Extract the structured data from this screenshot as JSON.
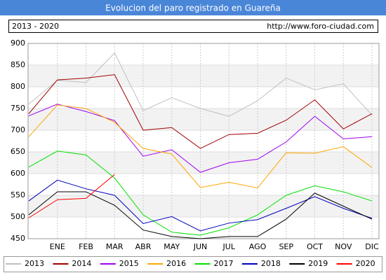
{
  "chart_data": {
    "type": "line",
    "title": "Evolucion del paro registrado en Guareña",
    "period": "2013 - 2020",
    "source": "http://www.foro-ciudad.com",
    "categories": [
      null,
      "ENE",
      "FEB",
      "MAR",
      "ABR",
      "MAY",
      "JUN",
      "JUL",
      "AGO",
      "SEP",
      "OCT",
      "NOV",
      "DIC"
    ],
    "ylim": [
      450,
      900
    ],
    "yticks": [
      450,
      500,
      550,
      600,
      650,
      700,
      750,
      800,
      850,
      900
    ],
    "grid": true,
    "legend": "bottom",
    "series": [
      {
        "name": "2013",
        "color": "#c0c0c0",
        "values": [
          760,
          815,
          810,
          878,
          745,
          775,
          750,
          732,
          768,
          820,
          793,
          807,
          735
        ]
      },
      {
        "name": "2014",
        "color": "#a00000",
        "values": [
          738,
          816,
          820,
          828,
          700,
          706,
          658,
          690,
          693,
          723,
          770,
          703,
          738
        ]
      },
      {
        "name": "2015",
        "color": "#a000f0",
        "values": [
          733,
          760,
          743,
          722,
          640,
          655,
          603,
          625,
          633,
          673,
          732,
          680,
          685
        ]
      },
      {
        "name": "2016",
        "color": "#ffa500",
        "values": [
          685,
          758,
          750,
          718,
          658,
          645,
          568,
          580,
          567,
          648,
          647,
          662,
          614
        ]
      },
      {
        "name": "2017",
        "color": "#00e000",
        "values": [
          615,
          652,
          643,
          590,
          505,
          465,
          458,
          475,
          505,
          550,
          572,
          558,
          537
        ]
      },
      {
        "name": "2018",
        "color": "#0000c0",
        "values": [
          537,
          585,
          565,
          550,
          485,
          501,
          468,
          486,
          494,
          520,
          547,
          520,
          497
        ]
      },
      {
        "name": "2019",
        "color": "#000000",
        "values": [
          505,
          558,
          558,
          527,
          470,
          455,
          450,
          455,
          455,
          495,
          555,
          525,
          495
        ]
      },
      {
        "name": "2020",
        "color": "#ff0000",
        "values": [
          498,
          540,
          543,
          598,
          null,
          null,
          null,
          null,
          null,
          null,
          null,
          null,
          null
        ]
      }
    ]
  }
}
